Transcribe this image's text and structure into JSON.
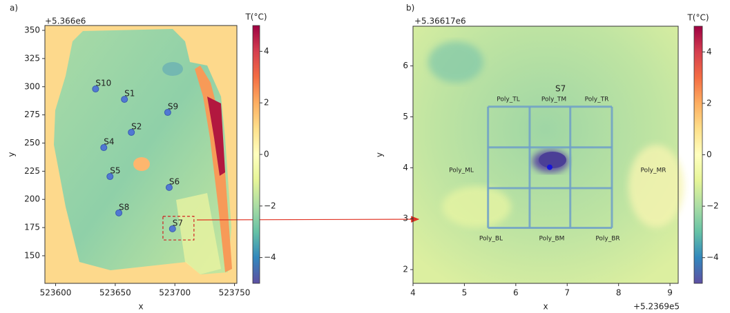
{
  "chart_data": [
    {
      "type": "scatter",
      "panel_label": "a)",
      "offset_label": "+5.366e6",
      "x_label": "x",
      "y_label": "y",
      "colorbar_label": "T(°C)",
      "xlim": [
        523591,
        523752
      ],
      "ylim": [
        125.5,
        354.3
      ],
      "xticks": [
        523600,
        523650,
        523700,
        523750
      ],
      "yticks": [
        150,
        175,
        200,
        225,
        250,
        275,
        300,
        325,
        350
      ],
      "clim": [
        -5,
        5
      ],
      "cticks": [
        {
          "value": -4,
          "label": "−4"
        },
        {
          "value": -2,
          "label": "−2"
        },
        0,
        2,
        4
      ],
      "colormap": [
        "#5e4fa2",
        "#3288bd",
        "#66c2a5",
        "#abdda4",
        "#e6f598",
        "#ffffbf",
        "#fee08b",
        "#fdae61",
        "#f46d43",
        "#d53e4f",
        "#9e0142"
      ],
      "point_color": "#4a6fd8",
      "point_labels": [
        "S10",
        "S1",
        "S9",
        "S2",
        "S4",
        "S5",
        "S6",
        "S8",
        "S7"
      ],
      "x": [
        523633.5,
        523657.7,
        523694,
        523663.5,
        523640.4,
        523645.6,
        523695.2,
        523653,
        523698
      ],
      "values": [
        298,
        288.8,
        277.2,
        259.5,
        246,
        220.3,
        210.6,
        188,
        173.9
      ],
      "highlight_box": {
        "x": [
          523690,
          523716
        ],
        "y": [
          164,
          185
        ]
      }
    },
    {
      "type": "scatter",
      "panel_label": "b)",
      "offset_label": "+5.36617e6",
      "x_offset_label": "+5.2369e5",
      "x_label": "x",
      "y_label": "y",
      "colorbar_label": "T(°C)",
      "xlim": [
        4,
        9.16
      ],
      "ylim": [
        1.73,
        6.78
      ],
      "xticks": [
        4,
        5,
        6,
        7,
        8,
        9
      ],
      "yticks": [
        2,
        3,
        4,
        5,
        6
      ],
      "clim": [
        -5,
        5
      ],
      "cticks": [
        {
          "value": -4,
          "label": "−4"
        },
        {
          "value": -2,
          "label": "−2"
        },
        0,
        2,
        4
      ],
      "colormap": [
        "#5e4fa2",
        "#3288bd",
        "#66c2a5",
        "#abdda4",
        "#e6f598",
        "#ffffbf",
        "#fee08b",
        "#fdae61",
        "#f46d43",
        "#d53e4f",
        "#9e0142"
      ],
      "point_color": "#1010e0",
      "point_labels": [
        "S7"
      ],
      "x": [
        6.66
      ],
      "values": [
        4.01
      ],
      "grid_x": [
        5.46,
        6.27,
        7.06,
        7.87
      ],
      "grid_y": [
        2.82,
        3.6,
        4.4,
        5.2
      ],
      "polygon_labels": [
        "Poly_TL",
        "Poly_TM",
        "Poly_TR",
        "Poly_ML",
        "Poly_MR",
        "Poly_BL",
        "Poly_BM",
        "Poly_BR"
      ]
    }
  ]
}
